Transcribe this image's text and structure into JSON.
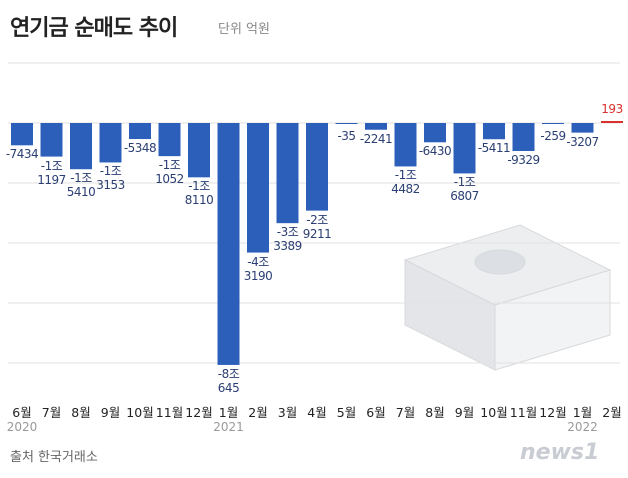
{
  "chart_data": {
    "type": "bar",
    "title": "연기금 순매도 추이",
    "unit": "단위 억원",
    "source": "출처 한국거래소",
    "logo": "news1",
    "categories": [
      "6월",
      "7월",
      "8월",
      "9월",
      "10월",
      "11월",
      "12월",
      "1월",
      "2월",
      "3월",
      "4월",
      "5월",
      "6월",
      "7월",
      "8월",
      "9월",
      "10월",
      "11월",
      "12월",
      "1월",
      "2월"
    ],
    "years": [
      "2020",
      null,
      null,
      null,
      null,
      null,
      null,
      "2021",
      null,
      null,
      null,
      null,
      null,
      null,
      null,
      null,
      null,
      null,
      null,
      "2022",
      null
    ],
    "values": [
      -7434,
      -11197,
      -15410,
      -13153,
      -5348,
      -11052,
      -18110,
      -80645,
      -43190,
      -33389,
      -29211,
      -35,
      -2241,
      -14482,
      -6430,
      -16807,
      -5411,
      -9329,
      -259,
      -3207,
      193
    ],
    "value_labels": [
      "-7434",
      "-1조\n1197",
      "-1조\n5410",
      "-1조\n3153",
      "-5348",
      "-1조\n1052",
      "-1조\n8110",
      "-8조\n645",
      "-4조\n3190",
      "-3조\n3389",
      "-2조\n9211",
      "-35",
      "-2241",
      "-1조\n4482",
      "-6430",
      "-1조\n6807",
      "-5411",
      "-9329",
      "-259",
      "-3207",
      "193"
    ],
    "color": "#2c5fb9",
    "positive_color": "#d9302c",
    "ylim": [
      20000,
      -90000
    ],
    "yticks": [
      20000,
      0,
      -20000,
      -40000,
      -60000,
      -80000
    ],
    "grid": true
  }
}
